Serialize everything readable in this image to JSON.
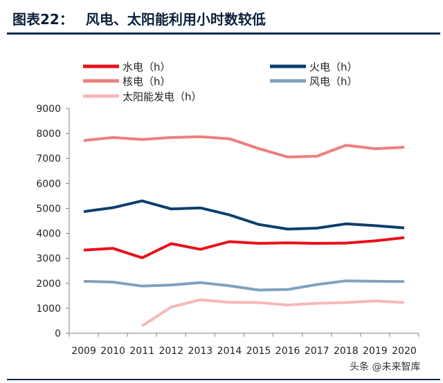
{
  "header": {
    "label": "图表22：",
    "title": "风电、太阳能利用小时数较低"
  },
  "watermark": "头条 @未来智库",
  "chart_data": {
    "type": "line",
    "title": "风电、太阳能利用小时数较低",
    "xlabel": "",
    "ylabel": "",
    "ylim": [
      0,
      9000
    ],
    "yticks": [
      0,
      1000,
      2000,
      3000,
      4000,
      5000,
      6000,
      7000,
      8000,
      9000
    ],
    "x": [
      "2009",
      "2010",
      "2011",
      "2012",
      "2013",
      "2014",
      "2015",
      "2016",
      "2017",
      "2018",
      "2019",
      "2020"
    ],
    "grid": false,
    "legend_placement": "top",
    "series": [
      {
        "name": "水电（h）",
        "color": "#e8101c",
        "values": [
          3330,
          3400,
          3020,
          3590,
          3360,
          3670,
          3600,
          3620,
          3600,
          3610,
          3700,
          3830
        ]
      },
      {
        "name": "火电（h）",
        "color": "#0d3f6e",
        "values": [
          4870,
          5030,
          5300,
          4980,
          5020,
          4740,
          4360,
          4170,
          4210,
          4380,
          4310,
          4220
        ]
      },
      {
        "name": "核电（h）",
        "color": "#ef7e7e",
        "values": [
          7720,
          7840,
          7760,
          7840,
          7870,
          7790,
          7400,
          7060,
          7090,
          7530,
          7390,
          7450
        ]
      },
      {
        "name": "风电（h）",
        "color": "#7fa2bf",
        "values": [
          2080,
          2050,
          1890,
          1930,
          2030,
          1900,
          1730,
          1750,
          1950,
          2100,
          2080,
          2070
        ]
      },
      {
        "name": "太阳能发电（h）",
        "color": "#f7b7b7",
        "values": [
          null,
          null,
          290,
          1050,
          1340,
          1240,
          1230,
          1130,
          1200,
          1230,
          1290,
          1230
        ]
      }
    ]
  }
}
